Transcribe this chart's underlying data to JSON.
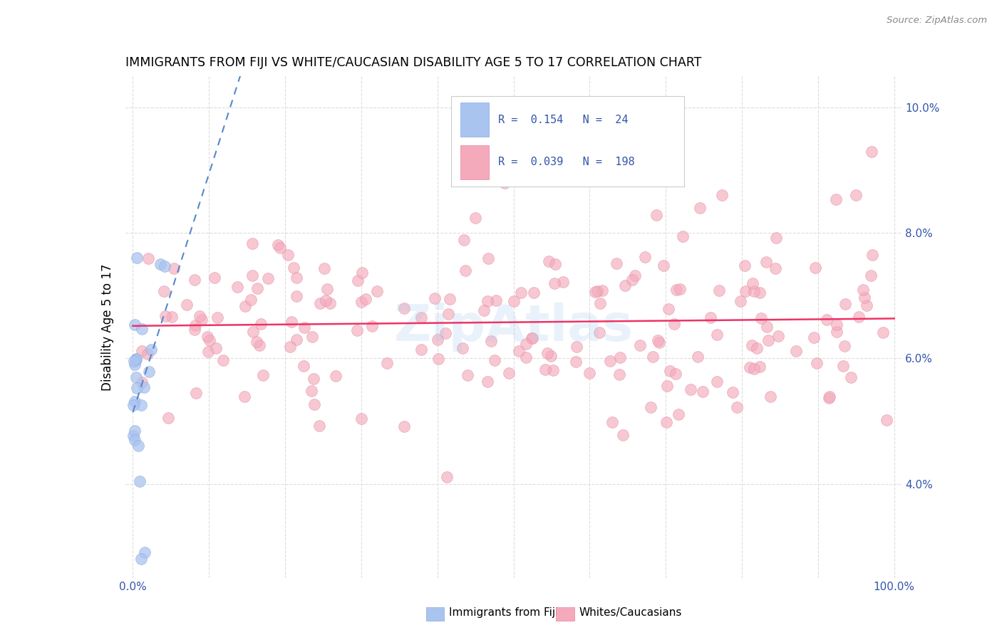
{
  "title": "IMMIGRANTS FROM FIJI VS WHITE/CAUCASIAN DISABILITY AGE 5 TO 17 CORRELATION CHART",
  "source": "Source: ZipAtlas.com",
  "ylabel": "Disability Age 5 to 17",
  "legend_label1": "Immigrants from Fiji",
  "legend_label2": "Whites/Caucasians",
  "R1": 0.154,
  "N1": 24,
  "R2": 0.039,
  "N2": 198,
  "fiji_color": "#aac4f0",
  "fiji_edge": "#88aadd",
  "white_color": "#f4aabb",
  "white_edge": "#e088a0",
  "trend_fiji_color": "#5588cc",
  "trend_white_color": "#ee3366",
  "watermark": "ZipAtlas",
  "xlim": [
    0.0,
    100.0
  ],
  "ylim": [
    2.5,
    10.5
  ],
  "ytick_vals": [
    4.0,
    6.0,
    8.0,
    10.0
  ],
  "grid_color": "#dddddd",
  "fiji_seed": 42,
  "white_seed": 99
}
